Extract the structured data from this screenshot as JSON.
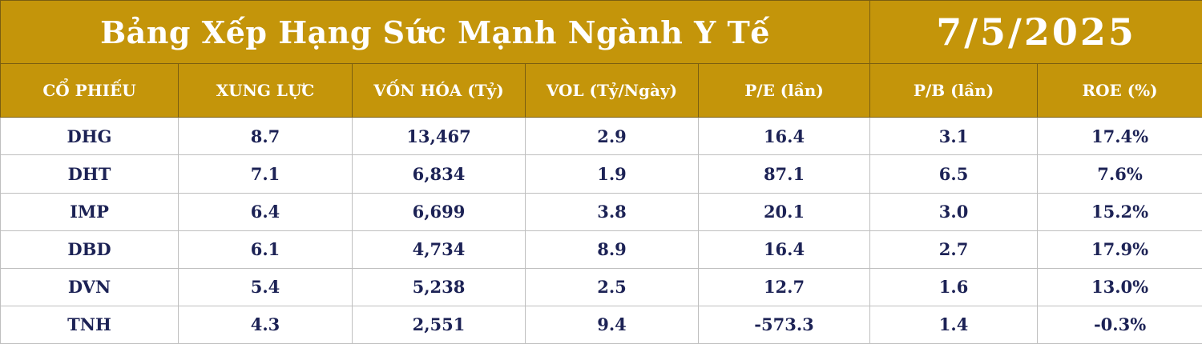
{
  "title": "Bảng Xếp Hạng Sức Mạnh Ngành Y Tế",
  "date": "7/5/2025",
  "colors": {
    "header_bg": "#c4950a",
    "header_text": "#ffffff",
    "body_text": "#1c2255",
    "grid": "#bfbfbf"
  },
  "columns": [
    "CỔ PHIẾU",
    "XUNG LỰC",
    "VỐN HÓA (Tỷ)",
    "VOL (Tỷ/Ngày)",
    "P/E (lần)",
    "P/B (lần)",
    "ROE (%)"
  ],
  "rows": [
    [
      "DHG",
      "8.7",
      "13,467",
      "2.9",
      "16.4",
      "3.1",
      "17.4%"
    ],
    [
      "DHT",
      "7.1",
      "6,834",
      "1.9",
      "87.1",
      "6.5",
      "7.6%"
    ],
    [
      "IMP",
      "6.4",
      "6,699",
      "3.8",
      "20.1",
      "3.0",
      "15.2%"
    ],
    [
      "DBD",
      "6.1",
      "4,734",
      "8.9",
      "16.4",
      "2.7",
      "17.9%"
    ],
    [
      "DVN",
      "5.4",
      "5,238",
      "2.5",
      "12.7",
      "1.6",
      "13.0%"
    ],
    [
      "TNH",
      "4.3",
      "2,551",
      "9.4",
      "-573.3",
      "1.4",
      "-0.3%"
    ]
  ]
}
